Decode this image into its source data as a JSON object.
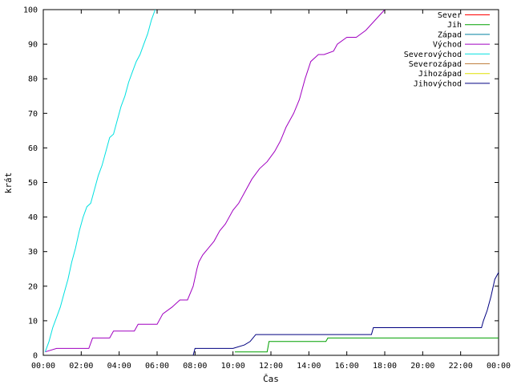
{
  "chart_data": {
    "type": "line",
    "title": "",
    "xlabel": "Čas",
    "ylabel": "krát",
    "xlim": [
      0,
      24
    ],
    "ylim": [
      0,
      100
    ],
    "x_ticks": [
      0,
      2,
      4,
      6,
      8,
      10,
      12,
      14,
      16,
      18,
      20,
      22,
      24
    ],
    "x_tick_labels": [
      "00:00",
      "02:00",
      "04:00",
      "06:00",
      "08:00",
      "10:00",
      "12:00",
      "14:00",
      "16:00",
      "18:00",
      "20:00",
      "22:00",
      "00:00"
    ],
    "y_ticks": [
      0,
      10,
      20,
      30,
      40,
      50,
      60,
      70,
      80,
      90,
      100
    ],
    "y_tick_labels": [
      "0",
      "10",
      "20",
      "30",
      "40",
      "50",
      "60",
      "70",
      "80",
      "90",
      "100"
    ],
    "grid": false,
    "legend_position": "top-right",
    "series": [
      {
        "name": "Sever",
        "color": "#ff0000",
        "x": [],
        "y": []
      },
      {
        "name": "Jih",
        "color": "#00a000",
        "x": [
          10.1,
          11.8,
          11.9,
          14.9,
          15.0,
          24.0
        ],
        "y": [
          1,
          1,
          4,
          4,
          5,
          5
        ]
      },
      {
        "name": "Západ",
        "color": "#0080a0",
        "x": [],
        "y": []
      },
      {
        "name": "Východ",
        "color": "#a000c0",
        "x": [
          0.1,
          0.7,
          2.4,
          2.6,
          3.5,
          3.7,
          4.8,
          5.0,
          6.0,
          6.3,
          6.8,
          7.2,
          7.6,
          7.9,
          8.1,
          8.2,
          8.4,
          8.7,
          9.0,
          9.3,
          9.6,
          10.0,
          10.3,
          10.6,
          11.0,
          11.4,
          11.8,
          12.2,
          12.5,
          12.8,
          13.2,
          13.5,
          13.8,
          14.1,
          14.5,
          14.8,
          15.3,
          15.5,
          16.0,
          16.5,
          17.0,
          17.5,
          18.0
        ],
        "y": [
          1,
          2,
          2,
          5,
          5,
          7,
          7,
          9,
          9,
          12,
          14,
          16,
          16,
          20,
          25,
          27,
          29,
          31,
          33,
          36,
          38,
          42,
          44,
          47,
          51,
          54,
          56,
          59,
          62,
          66,
          70,
          74,
          80,
          85,
          87,
          87,
          88,
          90,
          92,
          92,
          94,
          97,
          100
        ]
      },
      {
        "name": "Severovýchod",
        "color": "#00e0e0",
        "x": [
          0.1,
          0.3,
          0.5,
          0.7,
          0.9,
          1.1,
          1.3,
          1.5,
          1.7,
          1.9,
          2.1,
          2.3,
          2.5,
          2.7,
          2.9,
          3.1,
          3.3,
          3.5,
          3.7,
          3.9,
          4.1,
          4.3,
          4.5,
          4.7,
          4.9,
          5.1,
          5.3,
          5.5,
          5.7,
          5.9
        ],
        "y": [
          1,
          4,
          8,
          11,
          14,
          18,
          22,
          27,
          31,
          36,
          40,
          43,
          44,
          48,
          52,
          55,
          59,
          63,
          64,
          68,
          72,
          75,
          79,
          82,
          85,
          87,
          90,
          93,
          97,
          100
        ]
      },
      {
        "name": "Severozápad",
        "color": "#c08040",
        "x": [],
        "y": []
      },
      {
        "name": "Jihozápad",
        "color": "#e0e000",
        "x": [],
        "y": []
      },
      {
        "name": "Jihovýchod",
        "color": "#000080",
        "x": [
          7.9,
          8.0,
          10.0,
          10.6,
          10.9,
          11.2,
          17.3,
          17.4,
          23.1,
          23.2,
          23.4,
          23.6,
          23.8,
          24.0
        ],
        "y": [
          0,
          2,
          2,
          3,
          4,
          6,
          6,
          8,
          8,
          10,
          13,
          17,
          22,
          24
        ]
      }
    ]
  }
}
